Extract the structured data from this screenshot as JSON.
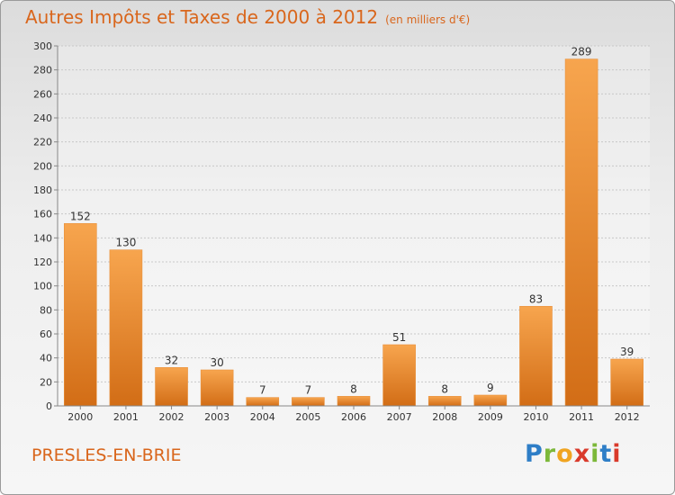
{
  "title": "Autres Impôts et Taxes de 2000 à 2012",
  "subtitle": "(en milliers d'€)",
  "location": "PRESLES-EN-BRIE",
  "brand": {
    "letters": [
      "P",
      "r",
      "o",
      "x",
      "i",
      "t",
      "i"
    ],
    "colors": [
      "#2e7ec7",
      "#7cb83a",
      "#f0a420",
      "#d93a2b",
      "#7cb83a",
      "#2e7ec7",
      "#d93a2b"
    ]
  },
  "colors": {
    "bar_top": "#f7a54e",
    "bar_bottom": "#d26d16",
    "accent": "#d9661c"
  },
  "chart_data": {
    "type": "bar",
    "categories": [
      "2000",
      "2001",
      "2002",
      "2003",
      "2004",
      "2005",
      "2006",
      "2007",
      "2008",
      "2009",
      "2010",
      "2011",
      "2012"
    ],
    "values": [
      152,
      130,
      32,
      30,
      7,
      7,
      8,
      51,
      8,
      9,
      83,
      289,
      39
    ],
    "data_labels": [
      "152",
      "130",
      "32",
      "30",
      "7",
      "7",
      "8",
      "51",
      "8",
      "9",
      "83",
      "289",
      "39"
    ],
    "title": "Autres Impôts et Taxes de 2000 à 2012",
    "subtitle": "(en milliers d'€)",
    "xlabel": "",
    "ylabel": "",
    "ylim": [
      0,
      300
    ],
    "yticks": [
      0,
      20,
      40,
      60,
      80,
      100,
      120,
      140,
      160,
      180,
      200,
      220,
      240,
      260,
      280,
      300
    ],
    "grid": true
  }
}
